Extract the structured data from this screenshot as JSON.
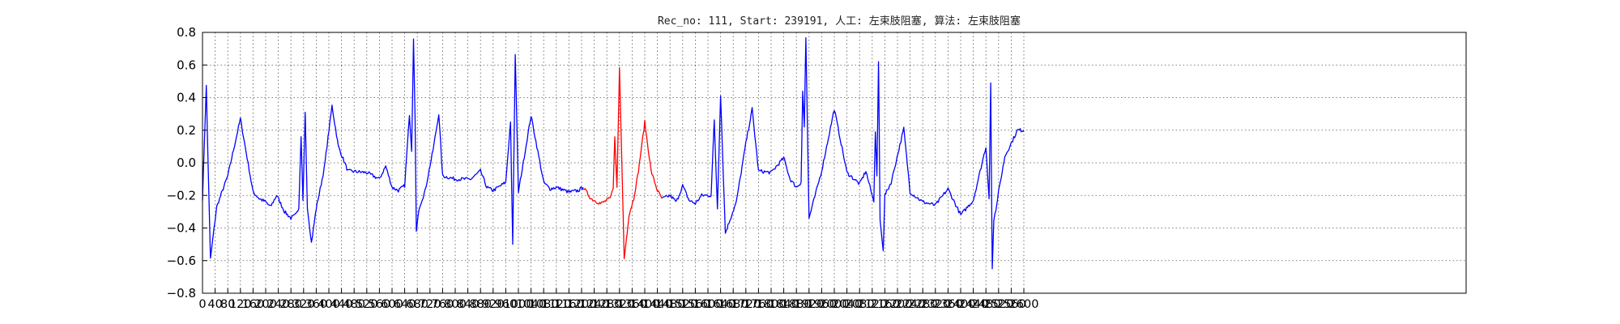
{
  "chart_data": {
    "type": "line",
    "title": "Rec_no: 111, Start: 239191, 人工: 左束肢阻塞, 算法: 左束肢阻塞",
    "xlabel": "",
    "ylabel": "",
    "xlim": [
      0,
      4000
    ],
    "ylim": [
      -0.8,
      0.8
    ],
    "x_ticks": [
      0,
      40,
      80,
      120,
      160,
      200,
      240,
      280,
      320,
      360,
      400,
      440,
      480,
      520,
      560,
      600,
      640,
      680,
      720,
      760,
      800,
      840,
      880,
      920,
      960,
      1000,
      1040,
      1080,
      1120,
      1160,
      1200,
      1240,
      1280,
      1320,
      1360,
      1400,
      1440,
      1480,
      1520,
      1560,
      1600,
      1640,
      1680,
      1720,
      1760,
      1800,
      1840,
      1880,
      1920,
      1960,
      2000,
      2040,
      2080,
      2120,
      2160,
      2200,
      2240,
      2280,
      2320,
      2360,
      2400,
      2440,
      2480,
      2520,
      2560,
      2600
    ],
    "y_ticks": [
      -0.8,
      -0.6,
      -0.4,
      -0.2,
      0.0,
      0.2,
      0.4,
      0.6,
      0.8
    ],
    "y_tick_labels": [
      "−0.8",
      "−0.6",
      "−0.4",
      "−0.2",
      "0.0",
      "0.2",
      "0.4",
      "0.6",
      "0.8"
    ],
    "grid": true,
    "sample_count": 2600,
    "series": [
      {
        "color": "#0000ff",
        "x": [
          0,
          12,
          25,
          45,
          80,
          120,
          160,
          180,
          200,
          215,
          235,
          260,
          280,
          295,
          305,
          312,
          318,
          325,
          332,
          345,
          360,
          385,
          410,
          430,
          460,
          520,
          560,
          580,
          600,
          620,
          640,
          655,
          662,
          668,
          673,
          677,
          685,
          705,
          730,
          748,
          760,
          800,
          850,
          880,
          900,
          920,
          960,
          975,
          982,
          990,
          1000,
          1040,
          1080,
          1100,
          1120,
          1160,
          1190,
          1205
        ],
        "y": [
          -0.22,
          0.47,
          -0.59,
          -0.27,
          -0.08,
          0.27,
          -0.18,
          -0.22,
          -0.24,
          -0.27,
          -0.2,
          -0.3,
          -0.34,
          -0.32,
          -0.28,
          0.16,
          -0.23,
          0.31,
          -0.27,
          -0.49,
          -0.28,
          -0.04,
          0.35,
          0.1,
          -0.05,
          -0.06,
          -0.1,
          -0.02,
          -0.15,
          -0.17,
          -0.14,
          0.29,
          0.07,
          0.76,
          0.26,
          -0.42,
          -0.28,
          -0.17,
          0.08,
          0.3,
          -0.08,
          -0.1,
          -0.1,
          -0.05,
          -0.15,
          -0.17,
          -0.12,
          0.25,
          -0.5,
          0.67,
          -0.18,
          0.29,
          -0.12,
          -0.16,
          -0.15,
          -0.18,
          -0.17,
          -0.15
        ]
      },
      {
        "color": "#ff0000",
        "x": [
          1205,
          1230,
          1260,
          1290,
          1300,
          1305,
          1312,
          1320,
          1335,
          1350,
          1365,
          1380,
          1400,
          1420,
          1440,
          1455
        ],
        "y": [
          -0.15,
          -0.22,
          -0.25,
          -0.22,
          -0.16,
          0.16,
          -0.15,
          0.59,
          -0.59,
          -0.32,
          -0.22,
          -0.05,
          0.25,
          -0.05,
          -0.17,
          -0.22
        ]
      },
      {
        "color": "#0000ff",
        "x": [
          1455,
          1480,
          1500,
          1520,
          1540,
          1560,
          1580,
          1610,
          1620,
          1630,
          1640,
          1655,
          1690,
          1720,
          1740,
          1760,
          1800,
          1840,
          1860,
          1880,
          1895,
          1900,
          1905,
          1910,
          1920,
          1960,
          2000,
          2040,
          2080,
          2100,
          2125,
          2130,
          2135,
          2140,
          2145,
          2155,
          2160,
          2180,
          2220,
          2240,
          2280,
          2320,
          2360,
          2400,
          2440,
          2480,
          2490,
          2495,
          2500,
          2505,
          2515,
          2520,
          2540,
          2580,
          2600
        ],
        "y": [
          -0.22,
          -0.2,
          -0.24,
          -0.14,
          -0.23,
          -0.25,
          -0.2,
          -0.2,
          0.26,
          -0.28,
          0.42,
          -0.43,
          -0.24,
          0.12,
          0.33,
          -0.05,
          -0.06,
          0.03,
          -0.1,
          -0.15,
          -0.12,
          0.44,
          0.22,
          0.77,
          -0.34,
          -0.05,
          0.33,
          -0.06,
          -0.13,
          -0.05,
          -0.24,
          0.19,
          -0.08,
          0.62,
          -0.34,
          -0.54,
          -0.2,
          -0.12,
          0.21,
          -0.18,
          -0.24,
          -0.26,
          -0.16,
          -0.32,
          -0.23,
          0.1,
          -0.22,
          0.49,
          -0.65,
          -0.35,
          -0.25,
          -0.18,
          0.04,
          0.2,
          0.2
        ]
      }
    ]
  }
}
